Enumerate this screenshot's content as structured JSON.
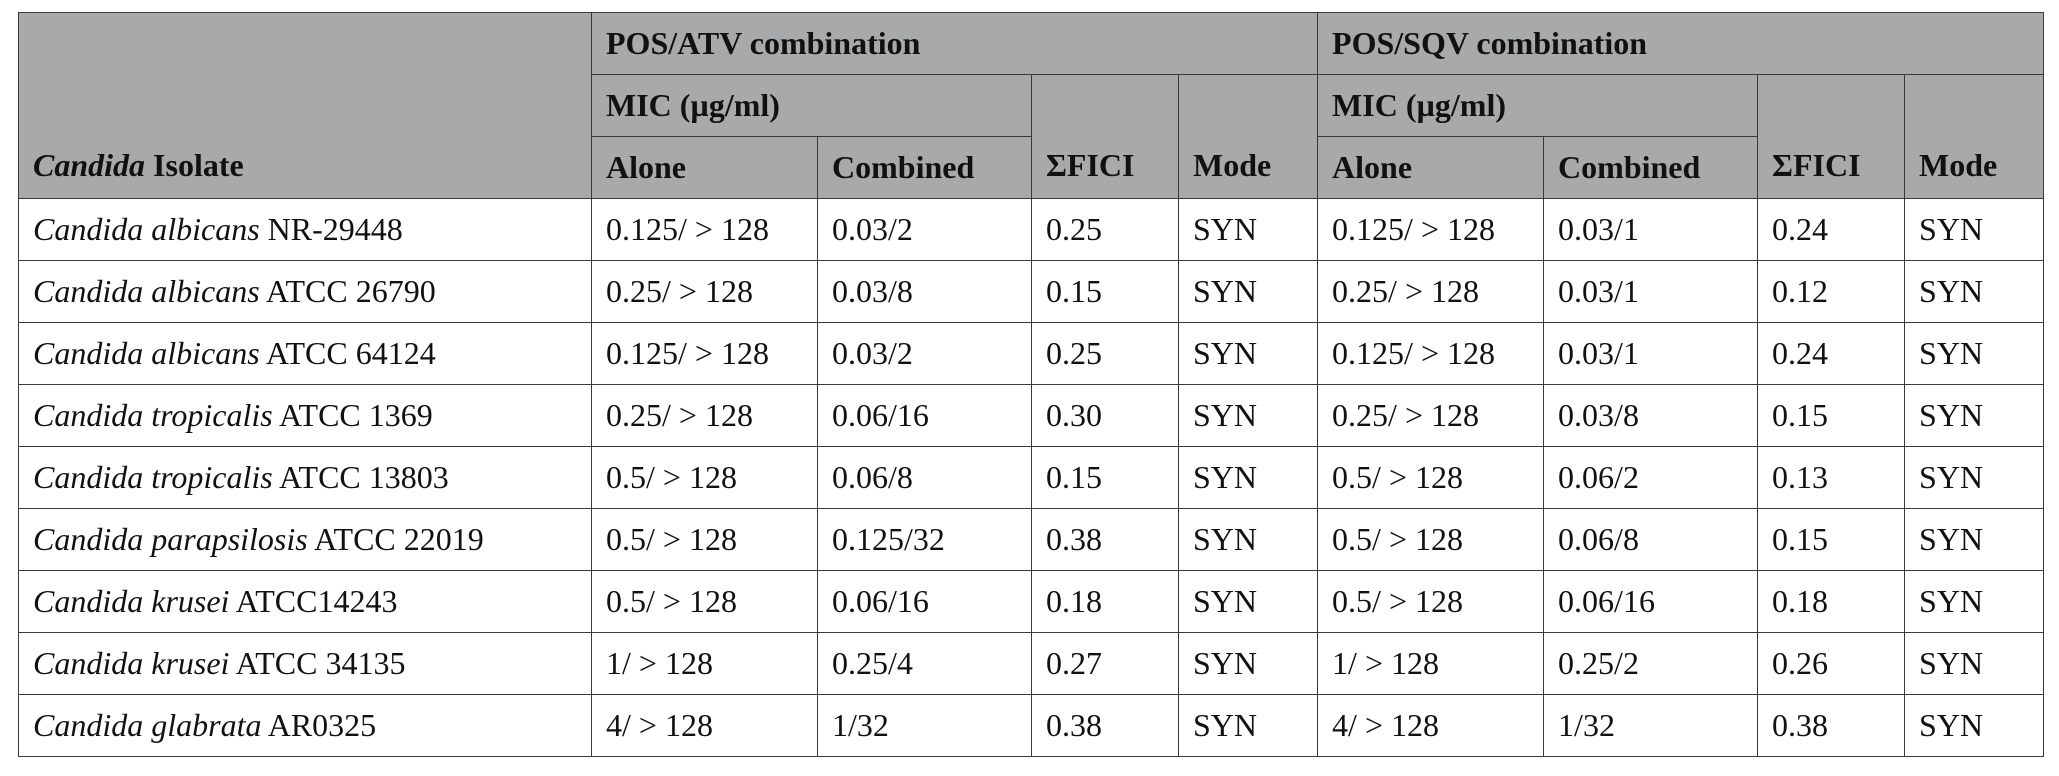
{
  "header": {
    "isolate_italic": "Candida",
    "isolate_rest": " Isolate",
    "group_atv": "POS/ATV combination",
    "group_sqv": "POS/SQV combination",
    "mic": "MIC (µg/ml)",
    "alone": "Alone",
    "combined": "Combined",
    "fici": "ΣFICI",
    "mode": "Mode"
  },
  "rows": [
    {
      "genus": "Candida albicans",
      "strain": " NR-29448",
      "atv_alone": "0.125/ > 128",
      "atv_comb": "0.03/2",
      "atv_fici": "0.25",
      "atv_mode": "SYN",
      "sqv_alone": "0.125/ > 128",
      "sqv_comb": "0.03/1",
      "sqv_fici": "0.24",
      "sqv_mode": "SYN"
    },
    {
      "genus": "Candida albicans",
      "strain": " ATCC 26790",
      "atv_alone": "0.25/ > 128",
      "atv_comb": "0.03/8",
      "atv_fici": "0.15",
      "atv_mode": "SYN",
      "sqv_alone": "0.25/ > 128",
      "sqv_comb": "0.03/1",
      "sqv_fici": "0.12",
      "sqv_mode": "SYN"
    },
    {
      "genus": "Candida albicans",
      "strain": " ATCC 64124",
      "atv_alone": "0.125/ > 128",
      "atv_comb": "0.03/2",
      "atv_fici": "0.25",
      "atv_mode": "SYN",
      "sqv_alone": "0.125/ > 128",
      "sqv_comb": "0.03/1",
      "sqv_fici": "0.24",
      "sqv_mode": "SYN"
    },
    {
      "genus": "Candida tropicalis",
      "strain": " ATCC 1369",
      "atv_alone": "0.25/ > 128",
      "atv_comb": "0.06/16",
      "atv_fici": "0.30",
      "atv_mode": "SYN",
      "sqv_alone": "0.25/ > 128",
      "sqv_comb": "0.03/8",
      "sqv_fici": "0.15",
      "sqv_mode": "SYN"
    },
    {
      "genus": "Candida tropicalis",
      "strain": " ATCC 13803",
      "atv_alone": "0.5/ > 128",
      "atv_comb": "0.06/8",
      "atv_fici": "0.15",
      "atv_mode": "SYN",
      "sqv_alone": "0.5/ > 128",
      "sqv_comb": "0.06/2",
      "sqv_fici": "0.13",
      "sqv_mode": "SYN"
    },
    {
      "genus": "Candida parapsilosis",
      "strain": " ATCC 22019",
      "atv_alone": "0.5/ > 128",
      "atv_comb": "0.125/32",
      "atv_fici": "0.38",
      "atv_mode": "SYN",
      "sqv_alone": "0.5/ > 128",
      "sqv_comb": "0.06/8",
      "sqv_fici": "0.15",
      "sqv_mode": "SYN"
    },
    {
      "genus": "Candida krusei",
      "strain": " ATCC14243",
      "atv_alone": "0.5/ > 128",
      "atv_comb": "0.06/16",
      "atv_fici": "0.18",
      "atv_mode": "SYN",
      "sqv_alone": "0.5/ > 128",
      "sqv_comb": "0.06/16",
      "sqv_fici": "0.18",
      "sqv_mode": "SYN"
    },
    {
      "genus": "Candida krusei",
      "strain": " ATCC 34135",
      "atv_alone": "1/ > 128",
      "atv_comb": "0.25/4",
      "atv_fici": "0.27",
      "atv_mode": "SYN",
      "sqv_alone": "1/ > 128",
      "sqv_comb": "0.25/2",
      "sqv_fici": "0.26",
      "sqv_mode": "SYN"
    },
    {
      "genus": "Candida glabrata",
      "strain": " AR0325",
      "atv_alone": "4/ > 128",
      "atv_comb": "1/32",
      "atv_fici": "0.38",
      "atv_mode": "SYN",
      "sqv_alone": "4/ > 128",
      "sqv_comb": "1/32",
      "sqv_fici": "0.38",
      "sqv_mode": "SYN"
    }
  ]
}
